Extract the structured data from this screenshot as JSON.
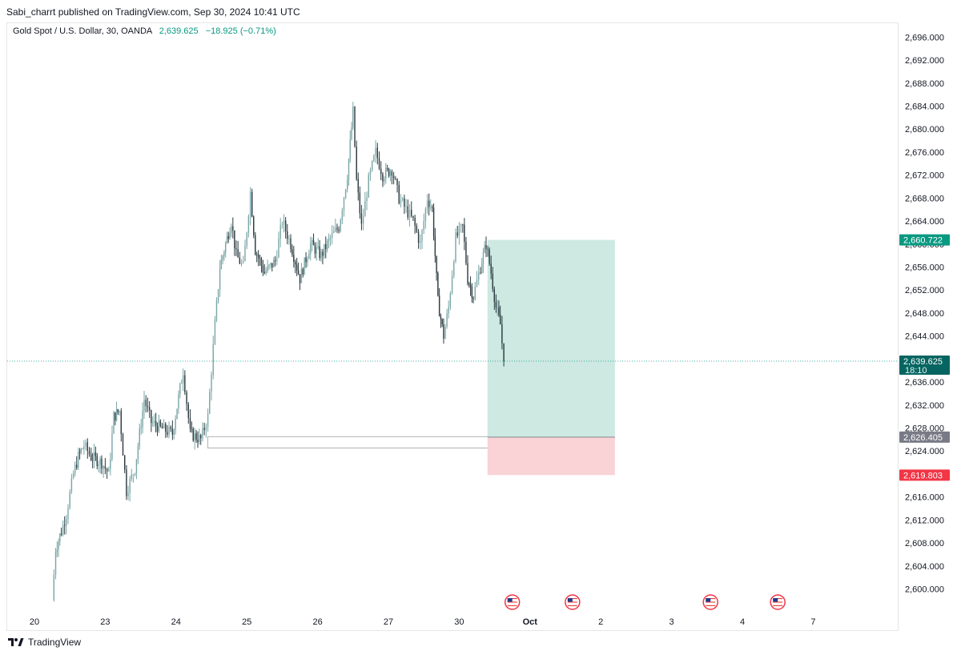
{
  "header": {
    "published_line": "Sabi_charrt published on TradingView.com, Sep 30, 2024 10:41 UTC"
  },
  "legend": {
    "symbol": "Gold Spot / U.S. Dollar, 30, OANDA",
    "price": "2,639.625",
    "change": "−18.925 (−0.71%)"
  },
  "footer": {
    "brand": "TradingView",
    "logo_icon": "tradingview-logo-icon"
  },
  "colors": {
    "candle": "#2b3a40",
    "candle_up": "#7aa6a6",
    "target_fill": "#cde9e1",
    "stop_fill": "#f9d3d6",
    "target_label": "#089981",
    "stop_label": "#f23645",
    "price_label": "#066561",
    "entry_label": "#787b86"
  },
  "chart_data": {
    "type": "candlestick",
    "title": "",
    "timeframe": "30",
    "ylim": [
      2597,
      2698
    ],
    "y_ticks": [
      "2,600.000",
      "2,604.000",
      "2,608.000",
      "2,612.000",
      "2,616.000",
      "2,620.000",
      "2,624.000",
      "2,628.000",
      "2,632.000",
      "2,636.000",
      "2,640.000",
      "2,644.000",
      "2,648.000",
      "2,652.000",
      "2,656.000",
      "2,660.000",
      "2,664.000",
      "2,668.000",
      "2,672.000",
      "2,676.000",
      "2,680.000",
      "2,684.000",
      "2,688.000",
      "2,692.000",
      "2,696.000"
    ],
    "x_ticks": [
      {
        "label": "20",
        "t": 0
      },
      {
        "label": "23",
        "t": 1
      },
      {
        "label": "24",
        "t": 2
      },
      {
        "label": "25",
        "t": 3
      },
      {
        "label": "26",
        "t": 4
      },
      {
        "label": "27",
        "t": 5
      },
      {
        "label": "30",
        "t": 6
      },
      {
        "label": "Oct",
        "t": 7,
        "bold": true
      },
      {
        "label": "2",
        "t": 8
      },
      {
        "label": "3",
        "t": 9
      },
      {
        "label": "4",
        "t": 10
      },
      {
        "label": "7",
        "t": 11
      }
    ],
    "close_path": [
      [
        0.25,
        2598
      ],
      [
        0.3,
        2607
      ],
      [
        0.38,
        2610
      ],
      [
        0.45,
        2613
      ],
      [
        0.55,
        2620
      ],
      [
        0.62,
        2623
      ],
      [
        0.7,
        2625
      ],
      [
        0.8,
        2623
      ],
      [
        0.95,
        2622
      ],
      [
        1.05,
        2620
      ],
      [
        1.12,
        2630
      ],
      [
        1.2,
        2631
      ],
      [
        1.3,
        2617
      ],
      [
        1.42,
        2621
      ],
      [
        1.55,
        2633
      ],
      [
        1.65,
        2629
      ],
      [
        1.78,
        2628
      ],
      [
        1.95,
        2627
      ],
      [
        2.1,
        2638
      ],
      [
        2.2,
        2627
      ],
      [
        2.35,
        2626
      ],
      [
        2.45,
        2630
      ],
      [
        2.55,
        2646
      ],
      [
        2.62,
        2656
      ],
      [
        2.7,
        2660
      ],
      [
        2.78,
        2664
      ],
      [
        2.85,
        2658
      ],
      [
        2.95,
        2656
      ],
      [
        3.05,
        2669
      ],
      [
        3.12,
        2659
      ],
      [
        3.25,
        2655
      ],
      [
        3.4,
        2657
      ],
      [
        3.5,
        2664
      ],
      [
        3.62,
        2660
      ],
      [
        3.75,
        2654
      ],
      [
        3.9,
        2660
      ],
      [
        4.05,
        2658
      ],
      [
        4.18,
        2661
      ],
      [
        4.3,
        2663
      ],
      [
        4.42,
        2672
      ],
      [
        4.5,
        2683
      ],
      [
        4.55,
        2671
      ],
      [
        4.62,
        2663
      ],
      [
        4.72,
        2671
      ],
      [
        4.82,
        2676
      ],
      [
        4.92,
        2672
      ],
      [
        5.05,
        2673
      ],
      [
        5.15,
        2668
      ],
      [
        5.25,
        2666
      ],
      [
        5.35,
        2664
      ],
      [
        5.45,
        2660
      ],
      [
        5.55,
        2668
      ],
      [
        5.62,
        2666
      ],
      [
        5.7,
        2650
      ],
      [
        5.78,
        2644
      ],
      [
        5.85,
        2649
      ],
      [
        5.95,
        2661
      ],
      [
        6.05,
        2663
      ],
      [
        6.12,
        2654
      ],
      [
        6.2,
        2651
      ],
      [
        6.3,
        2656
      ],
      [
        6.38,
        2660
      ],
      [
        6.45,
        2655
      ],
      [
        6.52,
        2649
      ],
      [
        6.58,
        2646
      ],
      [
        6.63,
        2639.625
      ]
    ],
    "last_price": 2639.625,
    "countdown": "18:10",
    "position": {
      "type": "long",
      "entry": 2626.405,
      "target": 2660.722,
      "stop": 2619.803,
      "t_start": 6.4,
      "t_end": 8.2
    },
    "zone": {
      "top": 2626.5,
      "bottom": 2624.5,
      "t_start": 2.45,
      "t_end": 6.78
    },
    "labels": {
      "target": "2,660.722",
      "last": "2,639.625",
      "entry": "2,626.405",
      "stop": "2,619.803"
    },
    "event_icons": [
      {
        "t": 6.75,
        "icon": "us-flag-icon"
      },
      {
        "t": 7.6,
        "icon": "us-flag-icon"
      },
      {
        "t": 9.55,
        "icon": "us-flag-icon"
      },
      {
        "t": 10.5,
        "icon": "us-flag-icon"
      }
    ]
  }
}
